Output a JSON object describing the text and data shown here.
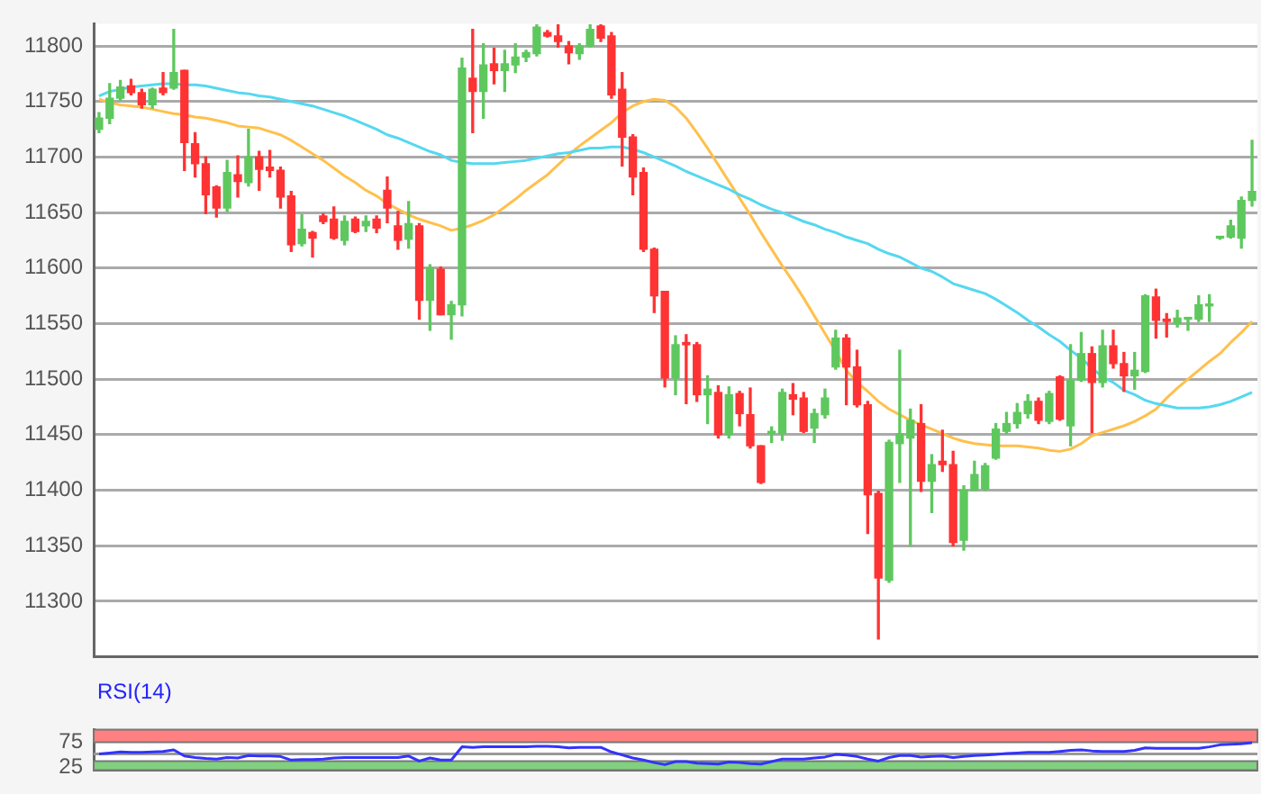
{
  "chart_data": [
    {
      "type": "candlestick",
      "categories": [
        null,
        null,
        null,
        null,
        null,
        null,
        null,
        null,
        null,
        null,
        null,
        null,
        null,
        null,
        null,
        null,
        null,
        null,
        null,
        null,
        null,
        null,
        null,
        null,
        null,
        null,
        null,
        null,
        null,
        null,
        null,
        null,
        null,
        null,
        null,
        null,
        null,
        null,
        null,
        null,
        null,
        null,
        null,
        null,
        null,
        null,
        null,
        null,
        null,
        null,
        null,
        null,
        null,
        null,
        null,
        null,
        null,
        null,
        null,
        null,
        null,
        null,
        null,
        null,
        null,
        null,
        null,
        null,
        null,
        null,
        null,
        null,
        null,
        null,
        null,
        null,
        null,
        null,
        null,
        null,
        null,
        null,
        null,
        null,
        null,
        null,
        null,
        null,
        null,
        null,
        null,
        null,
        null,
        null,
        null,
        null,
        null,
        null,
        null,
        null,
        null,
        null,
        null,
        null,
        null,
        null,
        null,
        null,
        null
      ],
      "ohlc": [
        [
          11725,
          11740,
          11722,
          11735
        ],
        [
          11735,
          11766,
          11730,
          11753
        ],
        [
          11753,
          11769,
          11751,
          11763
        ],
        [
          11764,
          11770,
          11756,
          11758
        ],
        [
          11758,
          11761,
          11744,
          11747
        ],
        [
          11747,
          11762,
          11744,
          11761
        ],
        [
          11762,
          11776,
          11756,
          11758
        ],
        [
          11762,
          11815,
          11761,
          11776
        ],
        [
          11778,
          11778,
          11688,
          11713
        ],
        [
          11712,
          11722,
          11682,
          11694
        ],
        [
          11694,
          11700,
          11649,
          11666
        ],
        [
          11673,
          11674,
          11646,
          11654
        ],
        [
          11654,
          11697,
          11651,
          11686
        ],
        [
          11684,
          11701,
          11664,
          11678
        ],
        [
          11677,
          11725,
          11674,
          11700
        ],
        [
          11700,
          11705,
          11670,
          11689
        ],
        [
          11691,
          11706,
          11682,
          11688
        ],
        [
          11688,
          11691,
          11654,
          11664
        ],
        [
          11665,
          11669,
          11615,
          11621
        ],
        [
          11622,
          11648,
          11620,
          11635
        ],
        [
          11632,
          11633,
          11610,
          11627
        ],
        [
          11647,
          11649,
          11640,
          11642
        ],
        [
          11644,
          11655,
          11626,
          11627
        ],
        [
          11625,
          11647,
          11621,
          11642
        ],
        [
          11644,
          11646,
          11632,
          11633
        ],
        [
          11638,
          11647,
          11633,
          11642
        ],
        [
          11644,
          11647,
          11632,
          11636
        ],
        [
          11670,
          11682,
          11641,
          11654
        ],
        [
          11638,
          11651,
          11617,
          11625
        ],
        [
          11626,
          11660,
          11618,
          11640
        ],
        [
          11638,
          11640,
          11554,
          11571
        ],
        [
          11571,
          11603,
          11544,
          11600
        ],
        [
          11599,
          11601,
          11558,
          11558
        ],
        [
          11558,
          11570,
          11536,
          11567
        ],
        [
          11567,
          11789,
          11557,
          11780
        ],
        [
          11771,
          11815,
          11722,
          11759
        ],
        [
          11759,
          11802,
          11735,
          11783
        ],
        [
          11784,
          11798,
          11766,
          11778
        ],
        [
          11778,
          11796,
          11759,
          11784
        ],
        [
          11783,
          11802,
          11776,
          11790
        ],
        [
          11790,
          11796,
          11786,
          11794
        ],
        [
          11793,
          11819,
          11791,
          11817
        ],
        [
          11812,
          11814,
          11808,
          11809
        ],
        [
          11809,
          11819,
          11799,
          11804
        ],
        [
          11800,
          11804,
          11784,
          11794
        ],
        [
          11793,
          11802,
          11788,
          11800
        ],
        [
          11800,
          11819,
          11799,
          11815
        ],
        [
          11818,
          11819,
          11804,
          11807
        ],
        [
          11809,
          11812,
          11753,
          11756
        ],
        [
          11761,
          11776,
          11692,
          11718
        ],
        [
          11718,
          11720,
          11666,
          11682
        ],
        [
          11686,
          11690,
          11615,
          11617
        ],
        [
          11617,
          11618,
          11560,
          11575
        ],
        [
          11579,
          11579,
          11493,
          11501
        ],
        [
          11501,
          11539,
          11486,
          11531
        ],
        [
          11533,
          11540,
          11478,
          11531
        ],
        [
          11531,
          11533,
          11480,
          11486
        ],
        [
          11486,
          11503,
          11460,
          11491
        ],
        [
          11488,
          11494,
          11447,
          11450
        ],
        [
          11450,
          11493,
          11447,
          11486
        ],
        [
          11487,
          11489,
          11458,
          11469
        ],
        [
          11468,
          11492,
          11438,
          11440
        ],
        [
          11440,
          11440,
          11406,
          11407
        ],
        [
          11451,
          11457,
          11443,
          11453
        ],
        [
          11451,
          11491,
          11445,
          11488
        ],
        [
          11486,
          11496,
          11468,
          11482
        ],
        [
          11483,
          11488,
          11452,
          11453
        ],
        [
          11456,
          11473,
          11443,
          11469
        ],
        [
          11468,
          11491,
          11465,
          11483
        ],
        [
          11511,
          11544,
          11509,
          11537
        ],
        [
          11537,
          11540,
          11477,
          11511
        ],
        [
          11511,
          11526,
          11475,
          11477
        ],
        [
          11477,
          11480,
          11361,
          11396
        ],
        [
          11397,
          11399,
          11266,
          11321
        ],
        [
          11319,
          11445,
          11317,
          11443
        ],
        [
          11442,
          11526,
          11407,
          11451
        ],
        [
          11447,
          11473,
          11350,
          11463
        ],
        [
          11460,
          11477,
          11399,
          11408
        ],
        [
          11408,
          11432,
          11380,
          11423
        ],
        [
          11426,
          11454,
          11417,
          11423
        ],
        [
          11423,
          11435,
          11350,
          11353
        ],
        [
          11355,
          11404,
          11346,
          11400
        ],
        [
          11400,
          11426,
          11400,
          11414
        ],
        [
          11401,
          11424,
          11400,
          11422
        ],
        [
          11429,
          11460,
          11428,
          11455
        ],
        [
          11453,
          11470,
          11451,
          11460
        ],
        [
          11460,
          11478,
          11456,
          11470
        ],
        [
          11469,
          11486,
          11465,
          11480
        ],
        [
          11480,
          11483,
          11460,
          11463
        ],
        [
          11462,
          11489,
          11460,
          11487
        ],
        [
          11502,
          11503,
          11463,
          11464
        ],
        [
          11458,
          11531,
          11440,
          11499
        ],
        [
          11499,
          11542,
          11498,
          11523
        ],
        [
          11523,
          11529,
          11452,
          11497
        ],
        [
          11497,
          11544,
          11493,
          11530
        ],
        [
          11530,
          11544,
          11510,
          11514
        ],
        [
          11514,
          11524,
          11489,
          11503
        ],
        [
          11503,
          11524,
          11491,
          11508
        ],
        [
          11507,
          11576,
          11506,
          11575
        ],
        [
          11574,
          11581,
          11537,
          11553
        ],
        [
          11554,
          11559,
          11538,
          11552
        ],
        [
          11550,
          11562,
          11547,
          11555
        ],
        [
          11554,
          11555,
          11544,
          11555
        ],
        [
          11554,
          11575,
          11552,
          11567
        ],
        [
          11566,
          11576,
          11552,
          11567
        ],
        [
          11627,
          11628,
          11626,
          11628
        ],
        [
          11628,
          11643,
          11627,
          11638
        ],
        [
          11627,
          11664,
          11618,
          11661
        ],
        [
          11661,
          11715,
          11656,
          11669
        ]
      ],
      "colors": [
        "#5ec85e",
        "#5ec85e",
        "#5ec85e",
        "#ff3333",
        "#ff3333",
        "#5ec85e",
        "#ff3333",
        "#5ec85e",
        "#ff3333",
        "#ff3333",
        "#ff3333",
        "#ff3333",
        "#5ec85e",
        "#ff3333",
        "#5ec85e",
        "#ff3333",
        "#ff3333",
        "#ff3333",
        "#ff3333",
        "#5ec85e",
        "#ff3333",
        "#ff3333",
        "#ff3333",
        "#5ec85e",
        "#ff3333",
        "#5ec85e",
        "#ff3333",
        "#ff3333",
        "#ff3333",
        "#5ec85e",
        "#ff3333",
        "#5ec85e",
        "#ff3333",
        "#5ec85e",
        "#5ec85e",
        "#ff3333",
        "#5ec85e",
        "#ff3333",
        "#5ec85e",
        "#5ec85e",
        "#5ec85e",
        "#5ec85e",
        "#ff3333",
        "#ff3333",
        "#ff3333",
        "#5ec85e",
        "#5ec85e",
        "#ff3333",
        "#ff3333",
        "#ff3333",
        "#ff3333",
        "#ff3333",
        "#ff3333",
        "#ff3333",
        "#5ec85e",
        "#ff3333",
        "#ff3333",
        "#5ec85e",
        "#ff3333",
        "#5ec85e",
        "#ff3333",
        "#ff3333",
        "#ff3333",
        "#5ec85e",
        "#5ec85e",
        "#ff3333",
        "#ff3333",
        "#5ec85e",
        "#5ec85e",
        "#5ec85e",
        "#ff3333",
        "#ff3333",
        "#ff3333",
        "#ff3333",
        "#5ec85e",
        "#5ec85e",
        "#5ec85e",
        "#ff3333",
        "#5ec85e",
        "#ff3333",
        "#ff3333",
        "#5ec85e",
        "#5ec85e",
        "#5ec85e",
        "#5ec85e",
        "#5ec85e",
        "#5ec85e",
        "#5ec85e",
        "#ff3333",
        "#5ec85e",
        "#ff3333",
        "#5ec85e",
        "#5ec85e",
        "#ff3333",
        "#5ec85e",
        "#ff3333",
        "#ff3333",
        "#5ec85e",
        "#5ec85e",
        "#ff3333",
        "#ff3333",
        "#5ec85e",
        "#5ec85e",
        "#5ec85e",
        "#5ec85e",
        "#5ec85e",
        "#5ec85e",
        "#5ec85e",
        "#5ec85e"
      ],
      "series": [
        {
          "type": "line",
          "color": "#55d8f0",
          "values": [
            11755,
            11759,
            11761,
            11763,
            11764,
            11765,
            11766,
            11766,
            11765,
            11765,
            11764,
            11762,
            11760,
            11758,
            11757,
            11755,
            11754,
            11752,
            11750,
            11748,
            11746,
            11743,
            11740,
            11737,
            11733,
            11729,
            11725,
            11720,
            11717,
            11713,
            11709,
            11705,
            11702,
            11697,
            11695,
            11694,
            11694,
            11694,
            11695,
            11696,
            11697,
            11699,
            11701,
            11703,
            11704,
            11706,
            11708,
            11708,
            11709,
            11709,
            11707,
            11704,
            11700,
            11696,
            11692,
            11687,
            11683,
            11679,
            11675,
            11671,
            11666,
            11662,
            11657,
            11653,
            11650,
            11646,
            11642,
            11639,
            11635,
            11632,
            11628,
            11625,
            11622,
            11617,
            11613,
            11610,
            11605,
            11600,
            11597,
            11592,
            11586,
            11583,
            11580,
            11577,
            11572,
            11566,
            11560,
            11553,
            11547,
            11540,
            11534,
            11526,
            11519,
            11510,
            11502,
            11497,
            11490,
            11486,
            11481,
            11478,
            11476,
            11474,
            11474,
            11474,
            11475,
            11477,
            11480,
            11484,
            11488
          ]
        },
        {
          "type": "line",
          "color": "#ffc04c",
          "values": [
            11752,
            11749,
            11747,
            11746,
            11745,
            11743,
            11741,
            11739,
            11738,
            11736,
            11735,
            11733,
            11731,
            11728,
            11727,
            11726,
            11723,
            11720,
            11715,
            11709,
            11703,
            11697,
            11690,
            11683,
            11677,
            11670,
            11665,
            11658,
            11653,
            11648,
            11644,
            11641,
            11638,
            11634,
            11636,
            11639,
            11643,
            11648,
            11655,
            11662,
            11670,
            11677,
            11684,
            11693,
            11702,
            11710,
            11717,
            11724,
            11731,
            11740,
            11746,
            11750,
            11752,
            11751,
            11745,
            11735,
            11722,
            11708,
            11693,
            11678,
            11663,
            11648,
            11632,
            11617,
            11602,
            11588,
            11573,
            11557,
            11541,
            11525,
            11508,
            11497,
            11489,
            11480,
            11473,
            11468,
            11463,
            11459,
            11455,
            11451,
            11447,
            11444,
            11442,
            11441,
            11440,
            11440,
            11440,
            11439,
            11438,
            11436,
            11435,
            11437,
            11442,
            11449,
            11452,
            11455,
            11458,
            11462,
            11467,
            11473,
            11483,
            11492,
            11500,
            11508,
            11516,
            11523,
            11533,
            11542,
            11552
          ]
        }
      ],
      "ylim": [
        11250,
        11820
      ],
      "yticks": [
        11300,
        11350,
        11400,
        11450,
        11500,
        11550,
        11600,
        11650,
        11700,
        11750,
        11800
      ],
      "grid": "y",
      "tick_labels": "y"
    },
    {
      "type": "line",
      "title": "RSI(14)",
      "categories": [
        null,
        null,
        null,
        null,
        null,
        null,
        null,
        null,
        null,
        null,
        null,
        null,
        null,
        null,
        null,
        null,
        null,
        null,
        null,
        null,
        null,
        null,
        null,
        null,
        null,
        null,
        null,
        null,
        null,
        null,
        null,
        null,
        null,
        null,
        null,
        null,
        null,
        null,
        null,
        null,
        null,
        null,
        null,
        null,
        null,
        null,
        null,
        null,
        null,
        null,
        null,
        null,
        null,
        null,
        null,
        null,
        null,
        null,
        null,
        null,
        null,
        null,
        null,
        null,
        null,
        null,
        null,
        null,
        null,
        null,
        null,
        null,
        null,
        null,
        null,
        null,
        null,
        null,
        null,
        null,
        null,
        null,
        null,
        null,
        null,
        null,
        null,
        null,
        null,
        null,
        null,
        null,
        null,
        null,
        null,
        null,
        null,
        null,
        null,
        null,
        null,
        null,
        null,
        null,
        null,
        null,
        null,
        null,
        null
      ],
      "series": [
        {
          "color": "#3333ff",
          "values": [
            52,
            54,
            56,
            55,
            55,
            56,
            57,
            60,
            48,
            45,
            43,
            42,
            45,
            44,
            49,
            48,
            48,
            47,
            40,
            41,
            41,
            42,
            44,
            45,
            45,
            45,
            45,
            45,
            45,
            48,
            38,
            44,
            40,
            40,
            66,
            65,
            66,
            66,
            66,
            66,
            66,
            67,
            67,
            66,
            64,
            65,
            65,
            65,
            56,
            50,
            44,
            40,
            35,
            31,
            37,
            37,
            34,
            33,
            32,
            36,
            35,
            33,
            32,
            37,
            42,
            42,
            42,
            44,
            46,
            51,
            50,
            47,
            42,
            38,
            45,
            49,
            49,
            46,
            47,
            48,
            45,
            47,
            49,
            50,
            51,
            53,
            54,
            55,
            55,
            55,
            57,
            59,
            60,
            58,
            57,
            57,
            57,
            59,
            64,
            63,
            63,
            63,
            63,
            63,
            66,
            70,
            71,
            72,
            74
          ]
        }
      ],
      "ylim": [
        20,
        100
      ],
      "yticks": [
        25,
        75
      ],
      "bands": [
        {
          "axis": "y",
          "from": 75,
          "to": 100,
          "color": "#ff8080"
        },
        {
          "axis": "y",
          "from": 20,
          "to": 38,
          "color": "#80d080"
        }
      ],
      "ref_lines": [
        {
          "axis": "y",
          "value": 52,
          "color": "#999999"
        }
      ],
      "grid": false,
      "tick_labels": "y"
    }
  ]
}
